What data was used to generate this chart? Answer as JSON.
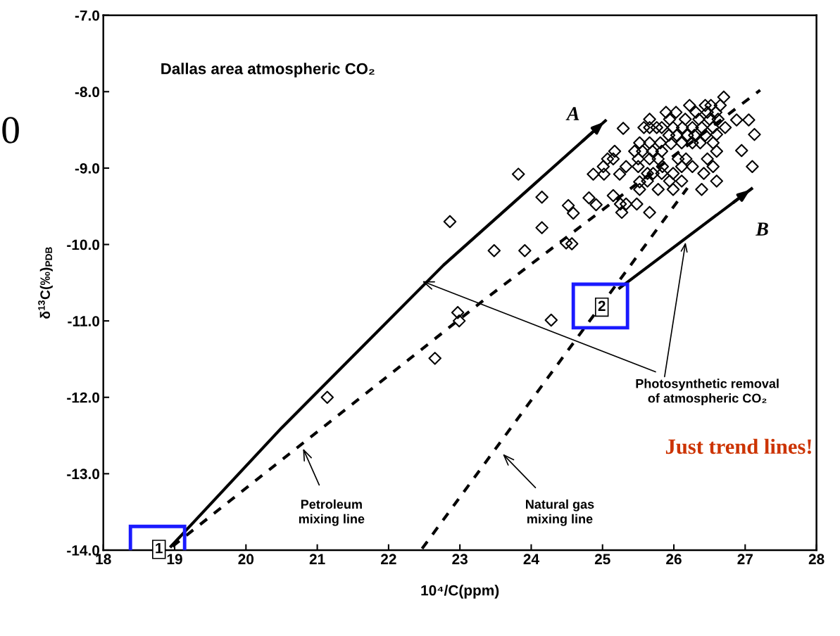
{
  "chart_data": {
    "type": "scatter",
    "title": "Dallas area atmospheric CO₂",
    "xlabel": "10⁴/C(ppm)",
    "ylabel": "δ$^{13}$C(‰)$_{PDB}$",
    "xlim": [
      18,
      28
    ],
    "xticks": [
      18,
      19,
      20,
      21,
      22,
      23,
      24,
      25,
      26,
      27,
      28
    ],
    "ylim": [
      -14.0,
      -7.0
    ],
    "yticks": [
      {
        "value": -14,
        "label": "-14.0"
      },
      {
        "value": -13,
        "label": "-13.0"
      },
      {
        "value": -12,
        "label": "-12.0"
      },
      {
        "value": -11,
        "label": "-11.0"
      },
      {
        "value": -10,
        "label": "-10.0"
      },
      {
        "value": -9,
        "label": "-9.0"
      },
      {
        "value": -8,
        "label": "-8.0"
      },
      {
        "value": -7,
        "label": "-7.0"
      }
    ],
    "grid": false,
    "series": [
      {
        "color": "#000000",
        "marker": "diamond",
        "x": [
          26.7,
          26.22,
          26.44,
          26.52,
          26.65,
          25.89,
          26.03,
          26.31,
          26.47,
          26.59,
          25.66,
          25.94,
          26.16,
          26.35,
          26.5,
          26.62,
          26.88,
          27.05,
          25.29,
          25.58,
          25.66,
          25.76,
          25.83,
          25.99,
          26.12,
          26.26,
          26.39,
          26.55,
          26.72,
          25.93,
          26.04,
          26.19,
          26.29,
          26.44,
          26.6,
          27.13,
          25.52,
          25.66,
          25.81,
          25.96,
          26.11,
          26.26,
          26.37,
          26.55,
          25.17,
          25.45,
          25.56,
          25.7,
          25.83,
          26.6,
          26.95,
          25.07,
          25.15,
          25.5,
          25.66,
          25.78,
          26.06,
          26.17,
          26.47,
          25.01,
          25.33,
          25.5,
          25.84,
          26.11,
          26.26,
          26.55,
          27.1,
          24.87,
          25.02,
          25.24,
          25.63,
          25.71,
          25.83,
          25.99,
          26.42,
          25.52,
          25.63,
          25.94,
          26.11,
          26.6,
          25.52,
          25.78,
          25.99,
          26.39,
          24.81,
          25.15,
          24.91,
          25.25,
          25.33,
          25.48,
          25.27,
          25.66,
          23.82,
          22.86,
          24.15,
          24.52,
          24.59,
          24.15,
          23.48,
          23.91,
          24.49,
          24.57,
          22.97,
          22.99,
          24.28,
          22.65,
          21.14
        ],
        "values": [
          -8.07,
          -8.18,
          -8.18,
          -8.18,
          -8.18,
          -8.27,
          -8.27,
          -8.27,
          -8.27,
          -8.27,
          -8.36,
          -8.36,
          -8.36,
          -8.36,
          -8.36,
          -8.36,
          -8.37,
          -8.37,
          -8.48,
          -8.47,
          -8.47,
          -8.47,
          -8.47,
          -8.47,
          -8.47,
          -8.47,
          -8.47,
          -8.47,
          -8.47,
          -8.57,
          -8.57,
          -8.57,
          -8.57,
          -8.57,
          -8.56,
          -8.56,
          -8.67,
          -8.67,
          -8.67,
          -8.68,
          -8.67,
          -8.67,
          -8.67,
          -8.67,
          -8.78,
          -8.78,
          -8.78,
          -8.78,
          -8.78,
          -8.78,
          -8.77,
          -8.88,
          -8.88,
          -8.88,
          -8.88,
          -8.88,
          -8.88,
          -8.88,
          -8.88,
          -8.98,
          -8.98,
          -8.98,
          -8.98,
          -8.98,
          -8.98,
          -8.98,
          -8.98,
          -9.08,
          -9.08,
          -9.08,
          -9.07,
          -9.07,
          -9.07,
          -9.07,
          -9.07,
          -9.18,
          -9.17,
          -9.17,
          -9.17,
          -9.17,
          -9.28,
          -9.28,
          -9.28,
          -9.28,
          -9.39,
          -9.36,
          -9.48,
          -9.47,
          -9.47,
          -9.47,
          -9.58,
          -9.58,
          -9.08,
          -9.7,
          -9.38,
          -9.49,
          -9.59,
          -9.78,
          -10.08,
          -10.08,
          -9.98,
          -9.99,
          -10.89,
          -11.0,
          -10.99,
          -11.49,
          -12.0
        ]
      },
      {
        "type": "line",
        "color": "#000000",
        "line_style": "solid",
        "x": [
          18.95,
          20.5,
          22.77,
          25.04
        ],
        "values": [
          -13.95,
          -12.4,
          -10.27,
          -8.38
        ]
      },
      {
        "type": "line",
        "color": "#000000",
        "line_style": "dashed",
        "x": [
          18.97,
          23.36,
          27.21
        ],
        "values": [
          -13.95,
          -10.71,
          -7.98
        ]
      },
      {
        "type": "line",
        "color": "#000000",
        "line_style": "dashed",
        "x": [
          22.47,
          26.19
        ],
        "values": [
          -13.98,
          -9.26
        ]
      },
      {
        "type": "line",
        "color": "#000000",
        "line_style": "solid",
        "x": [
          25.24,
          27.09
        ],
        "values": [
          -10.57,
          -9.27
        ]
      }
    ],
    "annotations": [
      {
        "text": "A",
        "x": 25.04,
        "y": -8.38
      },
      {
        "text": "B",
        "x": 27.09,
        "y": -9.27
      },
      {
        "text": "1",
        "x": 18.78,
        "y": -13.99
      },
      {
        "text": "2",
        "x": 24.99,
        "y": -10.82
      },
      "Petroleum\nmixing line",
      "Natural gas\nmixing line",
      {
        "text": "Photosynthetic removal\nof atmospheric CO₂",
        "x": 22.47,
        "y": -10.48
      },
      "Just trend lines!",
      "0"
    ]
  }
}
